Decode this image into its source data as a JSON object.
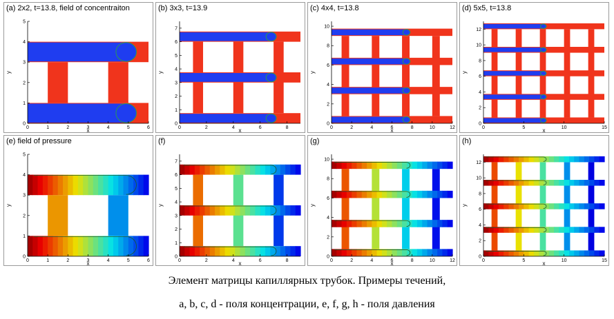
{
  "panels": [
    {
      "id": "a",
      "title": "(a) 2x2, t=13.8, field of concentraiton",
      "n": 2,
      "field": "concentration",
      "xmax": 6,
      "ymax": 5,
      "xticks": [
        0,
        1,
        2,
        3,
        4,
        5,
        6
      ],
      "yticks": [
        0,
        1,
        2,
        3,
        4,
        5
      ],
      "xlabel": "x",
      "ylabel": "y"
    },
    {
      "id": "b",
      "title": "(b) 3x3, t=13.9",
      "n": 3,
      "field": "concentration",
      "xmax": 9,
      "ymax": 7.5,
      "xticks": [
        0,
        2,
        4,
        6,
        8
      ],
      "yticks": [
        0,
        1,
        2,
        3,
        4,
        5,
        6,
        7
      ],
      "xlabel": "x",
      "ylabel": "y"
    },
    {
      "id": "c",
      "title": "(c) 4x4, t=13.8",
      "n": 4,
      "field": "concentration",
      "xmax": 12,
      "ymax": 10.5,
      "xticks": [
        0,
        2,
        4,
        6,
        8,
        10,
        12
      ],
      "yticks": [
        0,
        2,
        4,
        6,
        8,
        10
      ],
      "xlabel": "x",
      "ylabel": "y"
    },
    {
      "id": "d",
      "title": "(d) 5x5, t=13.8",
      "n": 5,
      "field": "concentration",
      "xmax": 15,
      "ymax": 13,
      "xticks": [
        0,
        5,
        10,
        15
      ],
      "yticks": [
        0,
        2,
        4,
        6,
        8,
        10,
        12
      ],
      "xlabel": "x",
      "ylabel": "y"
    },
    {
      "id": "e",
      "title": "(e) field of pressure",
      "n": 2,
      "field": "pressure",
      "xmax": 6,
      "ymax": 5,
      "xticks": [
        0,
        1,
        2,
        3,
        4,
        5,
        6
      ],
      "yticks": [
        0,
        1,
        2,
        3,
        4,
        5
      ],
      "xlabel": "x",
      "ylabel": "y"
    },
    {
      "id": "f",
      "title": "(f)",
      "n": 3,
      "field": "pressure",
      "xmax": 9,
      "ymax": 7.5,
      "xticks": [
        0,
        2,
        4,
        6,
        8
      ],
      "yticks": [
        0,
        1,
        2,
        3,
        4,
        5,
        6,
        7
      ],
      "xlabel": "x",
      "ylabel": "y"
    },
    {
      "id": "g",
      "title": "(g)",
      "n": 4,
      "field": "pressure",
      "xmax": 12,
      "ymax": 10.5,
      "xticks": [
        0,
        2,
        4,
        6,
        8,
        10,
        12
      ],
      "yticks": [
        0,
        2,
        4,
        6,
        8,
        10
      ],
      "xlabel": "x",
      "ylabel": "y"
    },
    {
      "id": "h",
      "title": "(h)",
      "n": 5,
      "field": "pressure",
      "xmax": 15,
      "ymax": 13,
      "xticks": [
        0,
        5,
        10,
        15
      ],
      "yticks": [
        0,
        2,
        4,
        6,
        8,
        10,
        12
      ],
      "xlabel": "x",
      "ylabel": "y"
    }
  ],
  "colors": {
    "concentration_high": "#1f3df0",
    "concentration_low": "#f0341c",
    "interface": "#2a9a52"
  },
  "caption": {
    "line1": "Элемент матрицы капиллярных трубок. Примеры течений,",
    "line2": "a, b, c, d - поля концентрации, e, f, g, h - поля давления"
  }
}
